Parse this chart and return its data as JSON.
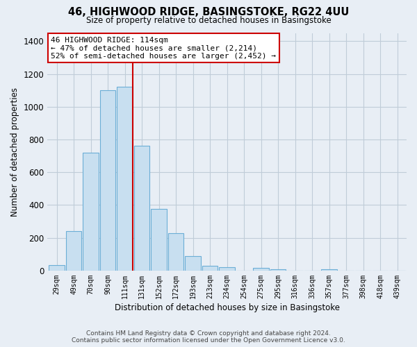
{
  "title": "46, HIGHWOOD RIDGE, BASINGSTOKE, RG22 4UU",
  "subtitle": "Size of property relative to detached houses in Basingstoke",
  "xlabel": "Distribution of detached houses by size in Basingstoke",
  "ylabel": "Number of detached properties",
  "bar_labels": [
    "29sqm",
    "49sqm",
    "70sqm",
    "90sqm",
    "111sqm",
    "131sqm",
    "152sqm",
    "172sqm",
    "193sqm",
    "213sqm",
    "234sqm",
    "254sqm",
    "275sqm",
    "295sqm",
    "316sqm",
    "336sqm",
    "357sqm",
    "377sqm",
    "398sqm",
    "418sqm",
    "439sqm"
  ],
  "bar_heights": [
    35,
    240,
    720,
    1100,
    1120,
    760,
    375,
    230,
    90,
    30,
    20,
    0,
    15,
    10,
    0,
    0,
    10,
    0,
    0,
    0,
    0
  ],
  "bar_color": "#c8dff0",
  "bar_edge_color": "#6baed6",
  "vline_color": "#cc0000",
  "annotation_title": "46 HIGHWOOD RIDGE: 114sqm",
  "annotation_line1": "← 47% of detached houses are smaller (2,214)",
  "annotation_line2": "52% of semi-detached houses are larger (2,452) →",
  "annotation_box_color": "#ffffff",
  "annotation_box_edge_color": "#cc0000",
  "ylim": [
    0,
    1450
  ],
  "yticks": [
    0,
    200,
    400,
    600,
    800,
    1000,
    1200,
    1400
  ],
  "footer_line1": "Contains HM Land Registry data © Crown copyright and database right 2024.",
  "footer_line2": "Contains public sector information licensed under the Open Government Licence v3.0.",
  "bg_color": "#e8eef5",
  "plot_bg_color": "#e8eef5",
  "grid_color": "#c0ccd8"
}
